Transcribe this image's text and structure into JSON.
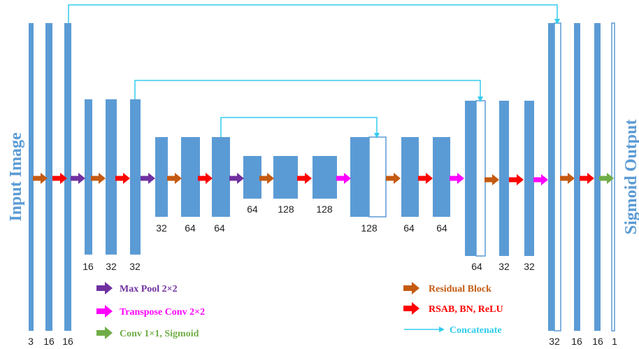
{
  "side_labels": {
    "left": "Input Image",
    "right": "Sigmoid Output"
  },
  "colors": {
    "block": "#5b9bd5",
    "residual": "#c55a11",
    "rsab": "#ff0000",
    "maxpool": "#7030a0",
    "transpose": "#ff00ff",
    "conv": "#70ad47",
    "concat": "#33ccee"
  },
  "channel_labels": {
    "in_3": "3",
    "in_16a": "16",
    "in_16b": "16",
    "e2_16": "16",
    "e2_32a": "32",
    "e2_32b": "32",
    "e3_32": "32",
    "e3_64a": "64",
    "e3_64b": "64",
    "b_64": "64",
    "b_128a": "128",
    "b_128b": "128",
    "d3_128": "128",
    "d3_64a": "64",
    "d3_64b": "64",
    "d2_64": "64",
    "d2_32a": "32",
    "d2_32b": "32",
    "d1_32": "32",
    "d1_16a": "16",
    "d1_16b": "16",
    "out_1": "1"
  },
  "legend": {
    "maxpool": "Max Pool 2×2",
    "transpose": "Transpose Conv 2×2",
    "conv": "Conv 1×1, Sigmoid",
    "residual": "Residual Block",
    "rsab": "RSAB, BN, ReLU",
    "concat": "Concatenate"
  }
}
